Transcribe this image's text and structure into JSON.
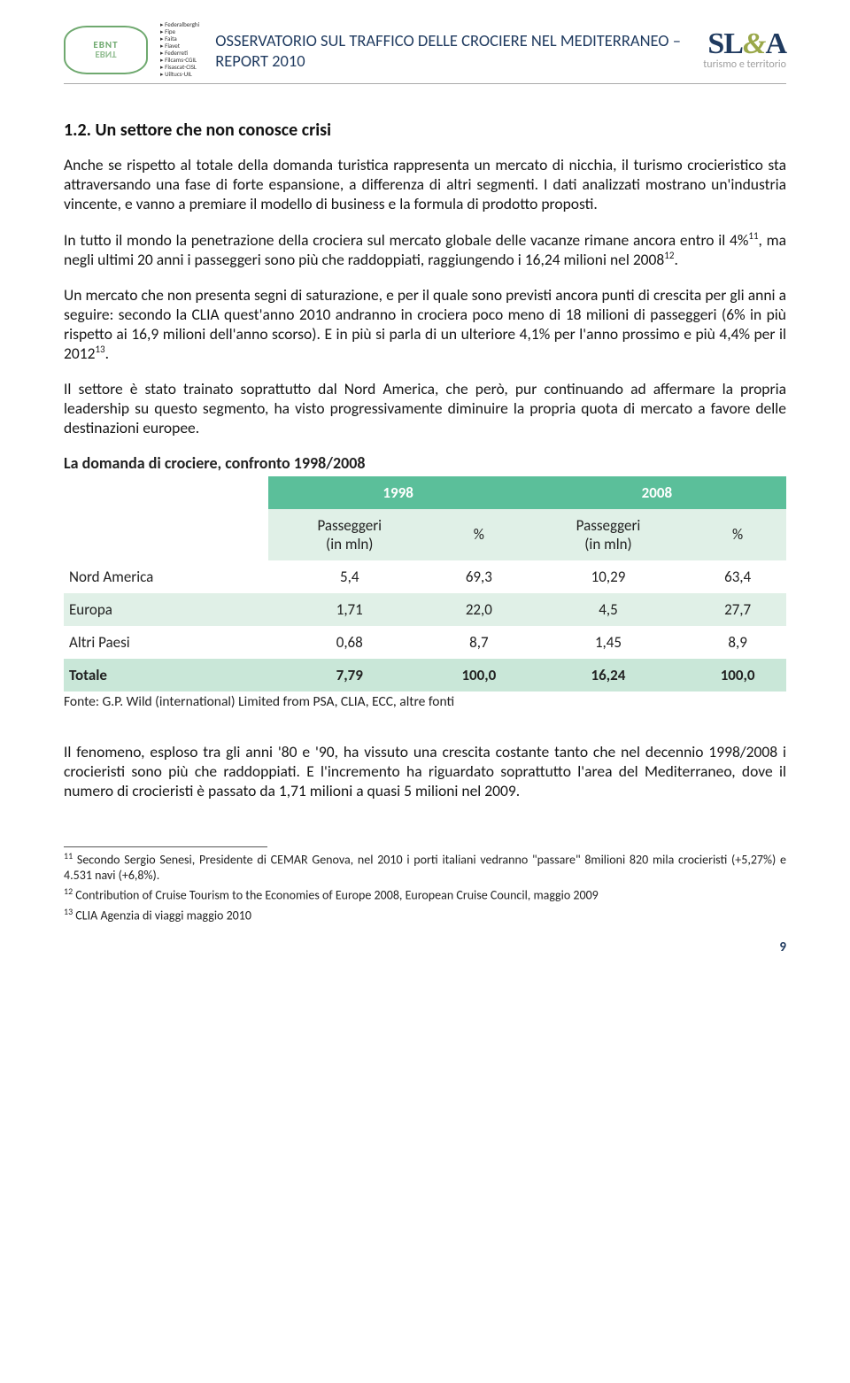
{
  "header": {
    "federations": "▸ Federalberghi\n▸ Fipe\n▸ Faita\n▸ Fiavet\n▸ Federreti\n▸ Filcams-CGIL\n▸ Fisascat-CISL\n▸ Uiltucs-UIL",
    "title": "OSSERVATORIO SUL TRAFFICO DELLE CROCIERE NEL MEDITERRANEO – REPORT 2010",
    "logo_right_tag": "turismo e territorio",
    "ebnt": "EBNT"
  },
  "section": {
    "number_title": "1.2.  Un settore che non conosce crisi"
  },
  "paragraphs": {
    "p1": "Anche se rispetto al totale della domanda turistica rappresenta un mercato di nicchia, il turismo crocieristico sta attraversando una fase di forte espansione, a differenza di altri segmenti. I dati analizzati mostrano un'industria vincente, e vanno a premiare il modello di business e la formula di prodotto proposti.",
    "p2a": "In tutto il mondo la penetrazione della crociera sul mercato globale delle vacanze rimane ancora entro il 4%",
    "p2b": ", ma negli ultimi 20 anni i passeggeri sono più che raddoppiati, raggiungendo i 16,24 milioni nel 2008",
    "p2c": ".",
    "p3a": "Un mercato che non presenta segni di saturazione, e per il quale sono previsti ancora punti di crescita per gli anni a seguire: secondo la CLIA quest'anno 2010 andranno in crociera poco meno di 18 milioni di passeggeri (6% in più rispetto ai 16,9 milioni dell'anno scorso). E in più si parla di un ulteriore 4,1% per l'anno prossimo e più 4,4% per il 2012",
    "p3b": ".",
    "p4": "Il settore è stato trainato soprattutto dal Nord America, che però, pur continuando ad affermare la propria leadership su questo segmento, ha visto progressivamente diminuire la propria quota di mercato a favore delle destinazioni europee.",
    "p5": "Il fenomeno, esploso tra gli anni '80 e '90, ha vissuto una crescita costante tanto che nel decennio 1998/2008 i crocieristi sono più che raddoppiati. E l'incremento ha riguardato soprattutto l'area del Mediterraneo, dove il numero di crocieristi è passato da 1,71 milioni a quasi 5 milioni nel 2009."
  },
  "table": {
    "title": "La domanda di crociere, confronto 1998/2008",
    "year1": "1998",
    "year2": "2008",
    "sub_pax": "Passeggeri\n(in mln)",
    "sub_pct": "%",
    "rows": [
      {
        "label": "Nord America",
        "v1": "5,4",
        "p1": "69,3",
        "v2": "10,29",
        "p2": "63,4"
      },
      {
        "label": "Europa",
        "v1": "1,71",
        "p1": "22,0",
        "v2": "4,5",
        "p2": "27,7"
      },
      {
        "label": "Altri Paesi",
        "v1": "0,68",
        "p1": "8,7",
        "v2": "1,45",
        "p2": "8,9"
      }
    ],
    "total": {
      "label": "Totale",
      "v1": "7,79",
      "p1": "100,0",
      "v2": "16,24",
      "p2": "100,0"
    },
    "source": "Fonte: G.P. Wild (international) Limited from PSA, CLIA, ECC, altre fonti",
    "colors": {
      "header_bg": "#5bbf9a",
      "stripe_bg": "#e0f0e7",
      "total_bg": "#c9e7d8"
    }
  },
  "footnotes": {
    "f11": " Secondo Sergio Senesi, Presidente di CEMAR Genova, nel 2010 i porti italiani vedranno \"passare\" 8milioni 820 mila crocieristi (+5,27%) e 4.531 navi (+6,8%).",
    "f12": " Contribution of Cruise Tourism to the Economies of Europe 2008, European Cruise Council, maggio 2009",
    "f13": "  CLIA Agenzia di viaggi maggio 2010"
  },
  "page_number": "9"
}
